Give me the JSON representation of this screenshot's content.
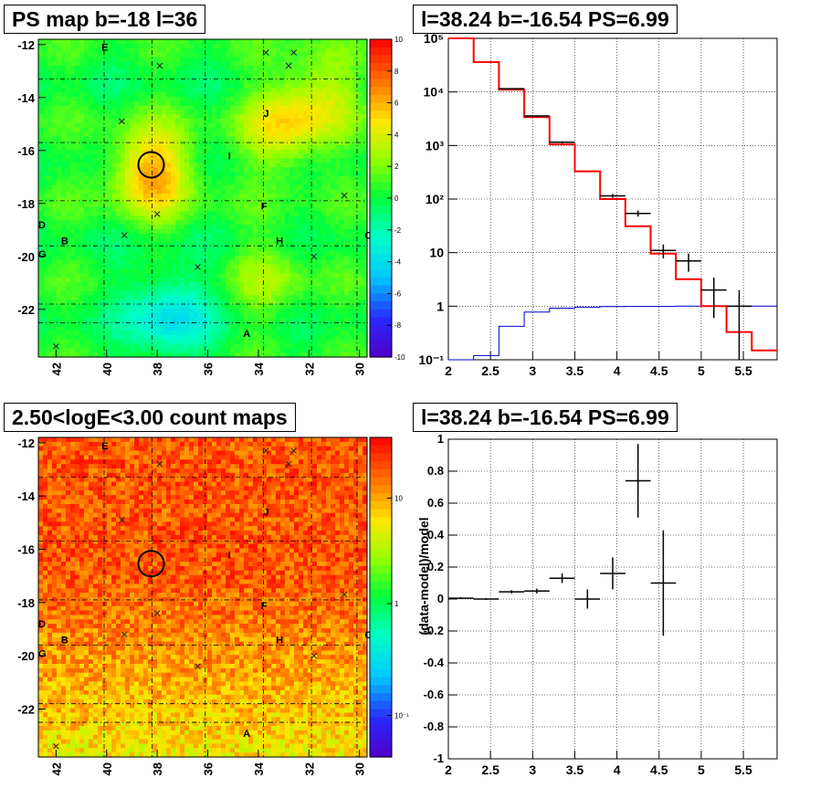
{
  "panels": {
    "ps_map_title": "PS map b=-18 l=36",
    "spectrum_title": "l=38.24 b=-16.54 PS=6.99",
    "count_map_title": "2.50<logE<3.00 count maps",
    "residual_title": "l=38.24 b=-16.54 PS=6.99"
  },
  "colors": {
    "model_line": "#ff0000",
    "secondary_line": "#0000cc",
    "data_points": "#000000",
    "grid": "#000000"
  },
  "map_common": {
    "x_ticks": [
      "42",
      "40",
      "38",
      "36",
      "34",
      "32",
      "30"
    ],
    "y_ticks": [
      "-12",
      "-14",
      "-16",
      "-18",
      "-20",
      "-22"
    ],
    "source_labels": [
      {
        "text": "E",
        "l": 40.2,
        "b": -12.1
      },
      {
        "text": "J",
        "l": 33.8,
        "b": -14.6
      },
      {
        "text": "I",
        "l": 35.2,
        "b": -16.2
      },
      {
        "text": "F",
        "l": 33.9,
        "b": -18.1
      },
      {
        "text": "D",
        "l": 42.7,
        "b": -18.8
      },
      {
        "text": "B",
        "l": 41.8,
        "b": -19.4
      },
      {
        "text": "H",
        "l": 33.3,
        "b": -19.4
      },
      {
        "text": "C",
        "l": 29.8,
        "b": -19.2
      },
      {
        "text": "G",
        "l": 42.7,
        "b": -19.9
      },
      {
        "text": "A",
        "l": 34.6,
        "b": -22.9
      }
    ],
    "crosses": [
      {
        "l": 37.9,
        "b": -12.8
      },
      {
        "l": 33.7,
        "b": -12.3
      },
      {
        "l": 32.6,
        "b": -12.3
      },
      {
        "l": 32.8,
        "b": -12.8
      },
      {
        "l": 39.4,
        "b": -14.9
      },
      {
        "l": 30.6,
        "b": -17.7
      },
      {
        "l": 38.0,
        "b": -18.4
      },
      {
        "l": 39.3,
        "b": -19.2
      },
      {
        "l": 36.4,
        "b": -20.4
      },
      {
        "l": 31.8,
        "b": -20.0
      },
      {
        "l": 42.0,
        "b": -23.4
      }
    ],
    "circle": {
      "l": 38.24,
      "b": -16.54
    }
  },
  "ps_palette_ticks": [
    "10",
    "8",
    "6",
    "4",
    "2",
    "0",
    "-2",
    "-4",
    "-6",
    "-8",
    "-10"
  ],
  "count_palette_ticks": [
    "10",
    "1",
    "10⁻¹"
  ],
  "chart_data": [
    {
      "type": "heatmap",
      "title": "PS map b=-18 l=36",
      "xlim": [
        42.7,
        29.7
      ],
      "ylim": [
        -23.8,
        -11.8
      ],
      "zlim": [
        -10,
        10
      ],
      "values_description_free": false,
      "hotspots": [
        {
          "l": 38.2,
          "b": -16.8,
          "value": 6
        },
        {
          "l": 33.0,
          "b": -15.2,
          "value": 4
        },
        {
          "l": 31.5,
          "b": -13.8,
          "value": 3
        },
        {
          "l": 33.5,
          "b": -20.8,
          "value": 2
        },
        {
          "l": 37.5,
          "b": -22.3,
          "value": -4
        }
      ]
    },
    {
      "type": "line",
      "title": "l=38.24 b=-16.54 PS=6.99",
      "x_ticks": [
        "2",
        "2.5",
        "3",
        "3.5",
        "4",
        "4.5",
        "5",
        "5.5"
      ],
      "y_ticks": [
        "10⁻¹",
        "1",
        "10",
        "10²",
        "10³",
        "10⁴",
        "10⁵"
      ],
      "xlim": [
        2,
        5.9
      ],
      "ylim": [
        0.1,
        100000
      ],
      "log_y": true,
      "grid": true,
      "model_steps": {
        "edges": [
          2,
          2.3,
          2.6,
          2.9,
          3.2,
          3.5,
          3.8,
          4.1,
          4.4,
          4.7,
          5.0,
          5.3,
          5.6,
          5.9
        ],
        "values": [
          100000,
          36000,
          11000,
          3400,
          1050,
          330,
          100,
          31,
          9.6,
          3.2,
          1.0,
          0.33,
          0.15
        ]
      },
      "secondary_steps": {
        "edges": [
          2,
          2.3,
          2.6,
          2.9,
          3.2,
          3.5,
          3.8,
          4.1,
          4.4,
          4.7,
          5.0,
          5.3,
          5.6,
          5.9
        ],
        "values": [
          0.1,
          0.12,
          0.42,
          0.78,
          0.92,
          0.96,
          0.98,
          0.99,
          0.99,
          1.0,
          1.0,
          1.0,
          1.0
        ]
      },
      "data_points": [
        {
          "x": 2.75,
          "y": 11500,
          "xerr": 0.15,
          "ylo": 11300,
          "yhi": 11700
        },
        {
          "x": 3.05,
          "y": 3550,
          "xerr": 0.15,
          "ylo": 3450,
          "yhi": 3650
        },
        {
          "x": 3.35,
          "y": 1150,
          "xerr": 0.15,
          "ylo": 1100,
          "yhi": 1200
        },
        {
          "x": 3.95,
          "y": 115,
          "xerr": 0.15,
          "ylo": 105,
          "yhi": 125
        },
        {
          "x": 4.25,
          "y": 54,
          "xerr": 0.15,
          "ylo": 47,
          "yhi": 61
        },
        {
          "x": 4.55,
          "y": 11,
          "xerr": 0.15,
          "ylo": 7.8,
          "yhi": 14.2
        },
        {
          "x": 4.85,
          "y": 7,
          "xerr": 0.15,
          "ylo": 4.4,
          "yhi": 9.6
        },
        {
          "x": 5.15,
          "y": 2,
          "xerr": 0.15,
          "ylo": 0.6,
          "yhi": 3.4
        },
        {
          "x": 5.45,
          "y": 1,
          "xerr": 0.15,
          "ylo": 0.1,
          "yhi": 2.0
        }
      ]
    },
    {
      "type": "heatmap",
      "title": "2.50<logE<3.00 count maps",
      "xlim": [
        42.7,
        29.7
      ],
      "ylim": [
        -23.8,
        -11.8
      ],
      "log_z": true,
      "zlim": [
        0.05,
        30
      ]
    },
    {
      "type": "scatter",
      "title": "l=38.24 b=-16.54 PS=6.99",
      "ylabel": "(data-model)/model",
      "x_ticks": [
        "2",
        "2.5",
        "3",
        "3.5",
        "4",
        "4.5",
        "5",
        "5.5"
      ],
      "y_ticks": [
        "1",
        "0.8",
        "0.6",
        "0.4",
        "0.2",
        "0",
        "-0.2",
        "-0.4",
        "-0.6",
        "-0.8",
        "-1"
      ],
      "xlim": [
        2,
        5.9
      ],
      "ylim": [
        -1,
        1
      ],
      "grid": true,
      "points": [
        {
          "x": 2.15,
          "y": 0.005,
          "xerr": 0.15,
          "yerr": 0.005
        },
        {
          "x": 2.45,
          "y": 0.0,
          "xerr": 0.15,
          "yerr": 0.005
        },
        {
          "x": 2.75,
          "y": 0.045,
          "xerr": 0.15,
          "yerr": 0.01
        },
        {
          "x": 3.05,
          "y": 0.05,
          "xerr": 0.15,
          "yerr": 0.015
        },
        {
          "x": 3.35,
          "y": 0.13,
          "xerr": 0.15,
          "yerr": 0.03
        },
        {
          "x": 3.65,
          "y": 0.0,
          "xerr": 0.15,
          "yerr": 0.06
        },
        {
          "x": 3.95,
          "y": 0.16,
          "xerr": 0.15,
          "yerr": 0.1
        },
        {
          "x": 4.25,
          "y": 0.74,
          "xerr": 0.15,
          "yerr": 0.23
        },
        {
          "x": 4.55,
          "y": 0.1,
          "xerr": 0.15,
          "yerr": 0.33
        }
      ]
    }
  ]
}
